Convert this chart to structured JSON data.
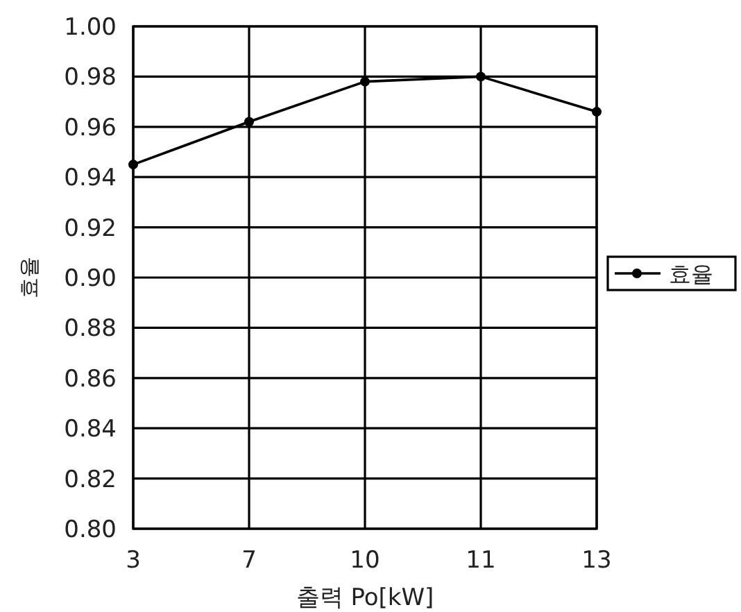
{
  "chart_data": {
    "type": "line",
    "xlabel": "출력 Po[kW]",
    "ylabel": "효율",
    "categories": [
      "3",
      "7",
      "10",
      "11",
      "13"
    ],
    "series": [
      {
        "name": "효율",
        "color": "#000000",
        "values": [
          0.945,
          0.962,
          0.978,
          0.98,
          0.966
        ]
      }
    ],
    "ylim": [
      0.8,
      1.0
    ],
    "yticks": [
      {
        "value": 0.8,
        "label": "0.80"
      },
      {
        "value": 0.82,
        "label": "0.82"
      },
      {
        "value": 0.84,
        "label": "0.84"
      },
      {
        "value": 0.86,
        "label": "0.86"
      },
      {
        "value": 0.88,
        "label": "0.88"
      },
      {
        "value": 0.9,
        "label": "0.90"
      },
      {
        "value": 0.92,
        "label": "0.92"
      },
      {
        "value": 0.94,
        "label": "0.94"
      },
      {
        "value": 0.96,
        "label": "0.96"
      },
      {
        "value": 0.98,
        "label": "0.98"
      },
      {
        "value": 1.0,
        "label": "1.00"
      }
    ],
    "grid": true,
    "legend": "right",
    "marker": "circle",
    "line_style": "solid"
  }
}
